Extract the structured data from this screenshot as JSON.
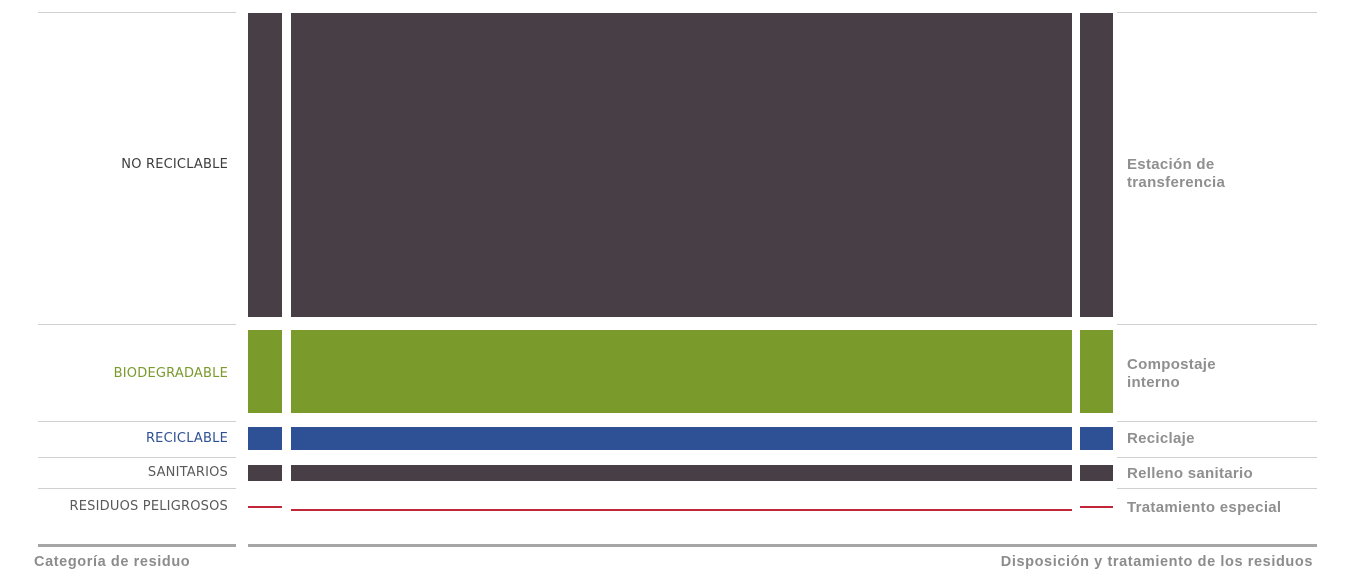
{
  "colors": {
    "no_reciclable": "#483f46",
    "biodegradable": "#7a9a2c",
    "reciclable": "#2e5094",
    "sanitarios": "#483f46",
    "peligrosos": "#c0283a",
    "label_grey": "#8f8f8f"
  },
  "categories": [
    {
      "id": "no_reciclable",
      "label": "NO RECICLABLE",
      "destination": "Estación de transferencia"
    },
    {
      "id": "biodegradable",
      "label": "BIODEGRADABLE",
      "destination": "Compostaje interno"
    },
    {
      "id": "reciclable",
      "label": "RECICLABLE",
      "destination": "Reciclaje"
    },
    {
      "id": "sanitarios",
      "label": "SANITARIOS",
      "destination": "Relleno sanitario"
    },
    {
      "id": "peligrosos",
      "label": "RESIDUOS PELIGROSOS",
      "destination": "Tratamiento especial"
    }
  ],
  "footer": {
    "left": "Categoría de residuo",
    "right": "Disposición y tratamiento de los residuos"
  }
}
